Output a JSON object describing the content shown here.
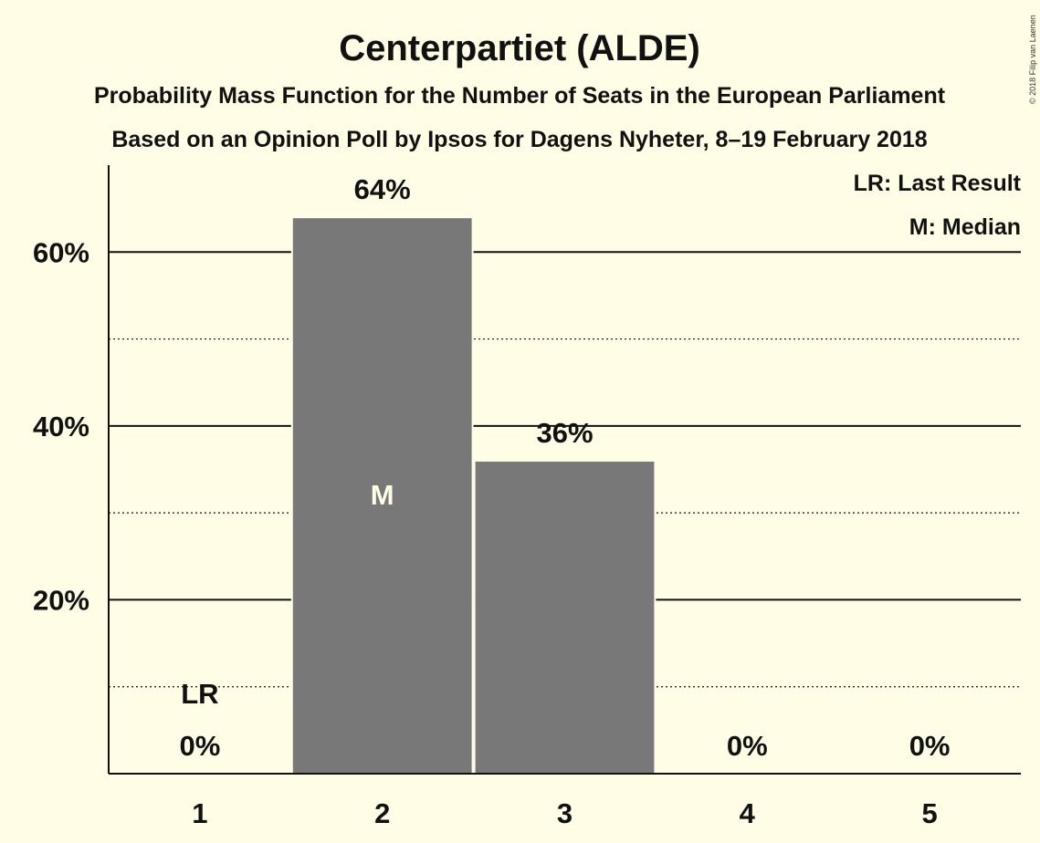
{
  "chart_data": {
    "type": "bar",
    "title": "Centerpartiet (ALDE)",
    "subtitle_lines": [
      "Probability Mass Function for the Number of Seats in the European Parliament",
      "Based on an Opinion Poll by Ipsos for Dagens Nyheter, 8–19 February 2018"
    ],
    "categories": [
      "1",
      "2",
      "3",
      "4",
      "5"
    ],
    "values": [
      0,
      64,
      36,
      0,
      0
    ],
    "value_labels": [
      "0%",
      "64%",
      "36%",
      "0%",
      "0%"
    ],
    "y_ticks": [
      {
        "value": 20,
        "label": "20%"
      },
      {
        "value": 40,
        "label": "40%"
      },
      {
        "value": 60,
        "label": "60%"
      }
    ],
    "minor_gridlines": [
      10,
      30,
      50
    ],
    "ylim": [
      0,
      70
    ],
    "xlabel": "",
    "ylabel": "",
    "last_result": {
      "category": "1",
      "label": "LR"
    },
    "median": {
      "category": "2",
      "label": "M"
    },
    "legend": {
      "placement": "top-right",
      "items": [
        "LR: Last Result",
        "M: Median"
      ]
    },
    "copyright": "© 2018 Filip van Laenen",
    "colors": {
      "background": "#FFFDE6",
      "bar": "#787878",
      "text": "#111111",
      "median_text": "#FFFDE6"
    }
  }
}
